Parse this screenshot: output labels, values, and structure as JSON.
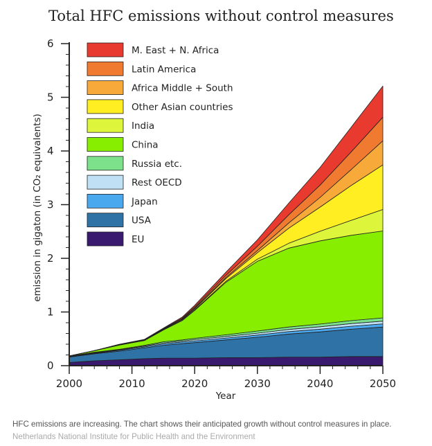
{
  "caption": {
    "text": "HFC emissions are increasing. The chart shows their anticipated growth without control measures in place.",
    "source": "Netherlands National Institute for Public Health and the Environment"
  },
  "chart_data": {
    "type": "area",
    "stacked": true,
    "title": "Total HFC emissions without control measures",
    "xlabel": "Year",
    "ylabel": "emission in gigaton (in CO₂ equivalents)",
    "xlim": [
      2000,
      2050
    ],
    "ylim": [
      0,
      6
    ],
    "xticks": [
      2000,
      2010,
      2020,
      2030,
      2040,
      2050
    ],
    "yticks": [
      0,
      1,
      2,
      3,
      4,
      5,
      6
    ],
    "grid": false,
    "legend_position": "top-left",
    "x": [
      2000,
      2004,
      2008,
      2012,
      2015,
      2018,
      2020,
      2025,
      2030,
      2035,
      2040,
      2045,
      2050
    ],
    "series": [
      {
        "name": "EU",
        "color": "#3a1a6e",
        "values": [
          0.06,
          0.09,
          0.11,
          0.13,
          0.14,
          0.14,
          0.14,
          0.15,
          0.15,
          0.16,
          0.16,
          0.17,
          0.17
        ]
      },
      {
        "name": "USA",
        "color": "#2f73a6",
        "values": [
          0.1,
          0.13,
          0.16,
          0.2,
          0.24,
          0.27,
          0.29,
          0.33,
          0.38,
          0.43,
          0.47,
          0.51,
          0.55
        ]
      },
      {
        "name": "Japan",
        "color": "#4aa8ee",
        "values": [
          0.005,
          0.01,
          0.015,
          0.02,
          0.025,
          0.03,
          0.03,
          0.035,
          0.04,
          0.045,
          0.05,
          0.055,
          0.06
        ]
      },
      {
        "name": "Rest OECD",
        "color": "#bfe0f5",
        "values": [
          0.005,
          0.01,
          0.01,
          0.015,
          0.02,
          0.02,
          0.025,
          0.03,
          0.035,
          0.04,
          0.045,
          0.05,
          0.05
        ]
      },
      {
        "name": "Russia etc.",
        "color": "#7de08a",
        "values": [
          0.005,
          0.01,
          0.01,
          0.015,
          0.02,
          0.02,
          0.025,
          0.03,
          0.04,
          0.045,
          0.05,
          0.055,
          0.06
        ]
      },
      {
        "name": "China",
        "color": "#88ee00",
        "values": [
          0.005,
          0.03,
          0.08,
          0.09,
          0.22,
          0.36,
          0.52,
          0.98,
          1.3,
          1.47,
          1.55,
          1.59,
          1.62
        ]
      },
      {
        "name": "India",
        "color": "#ddf53a",
        "values": [
          0.0,
          0.0,
          0.0,
          0.0,
          0.0,
          0.005,
          0.01,
          0.02,
          0.04,
          0.09,
          0.18,
          0.28,
          0.4
        ]
      },
      {
        "name": "Other Asian countries",
        "color": "#ffee22",
        "values": [
          0.0,
          0.0,
          0.005,
          0.005,
          0.01,
          0.015,
          0.02,
          0.05,
          0.12,
          0.28,
          0.45,
          0.65,
          0.83
        ]
      },
      {
        "name": "Africa Middle + South",
        "color": "#f7a93a",
        "values": [
          0.0,
          0.0,
          0.0,
          0.005,
          0.005,
          0.01,
          0.015,
          0.02,
          0.04,
          0.1,
          0.18,
          0.3,
          0.45
        ]
      },
      {
        "name": "Latin America",
        "color": "#ef7a30",
        "values": [
          0.0,
          0.0,
          0.005,
          0.005,
          0.01,
          0.015,
          0.02,
          0.04,
          0.08,
          0.15,
          0.23,
          0.33,
          0.44
        ]
      },
      {
        "name": "M. East + N. Africa",
        "color": "#e83a2e",
        "values": [
          0.0,
          0.0,
          0.005,
          0.005,
          0.01,
          0.02,
          0.03,
          0.06,
          0.12,
          0.22,
          0.33,
          0.46,
          0.58
        ]
      }
    ],
    "legend_order": [
      "M. East + N. Africa",
      "Latin America",
      "Africa Middle + South",
      "Other Asian countries",
      "India",
      "China",
      "Russia etc.",
      "Rest OECD",
      "Japan",
      "USA",
      "EU"
    ]
  }
}
